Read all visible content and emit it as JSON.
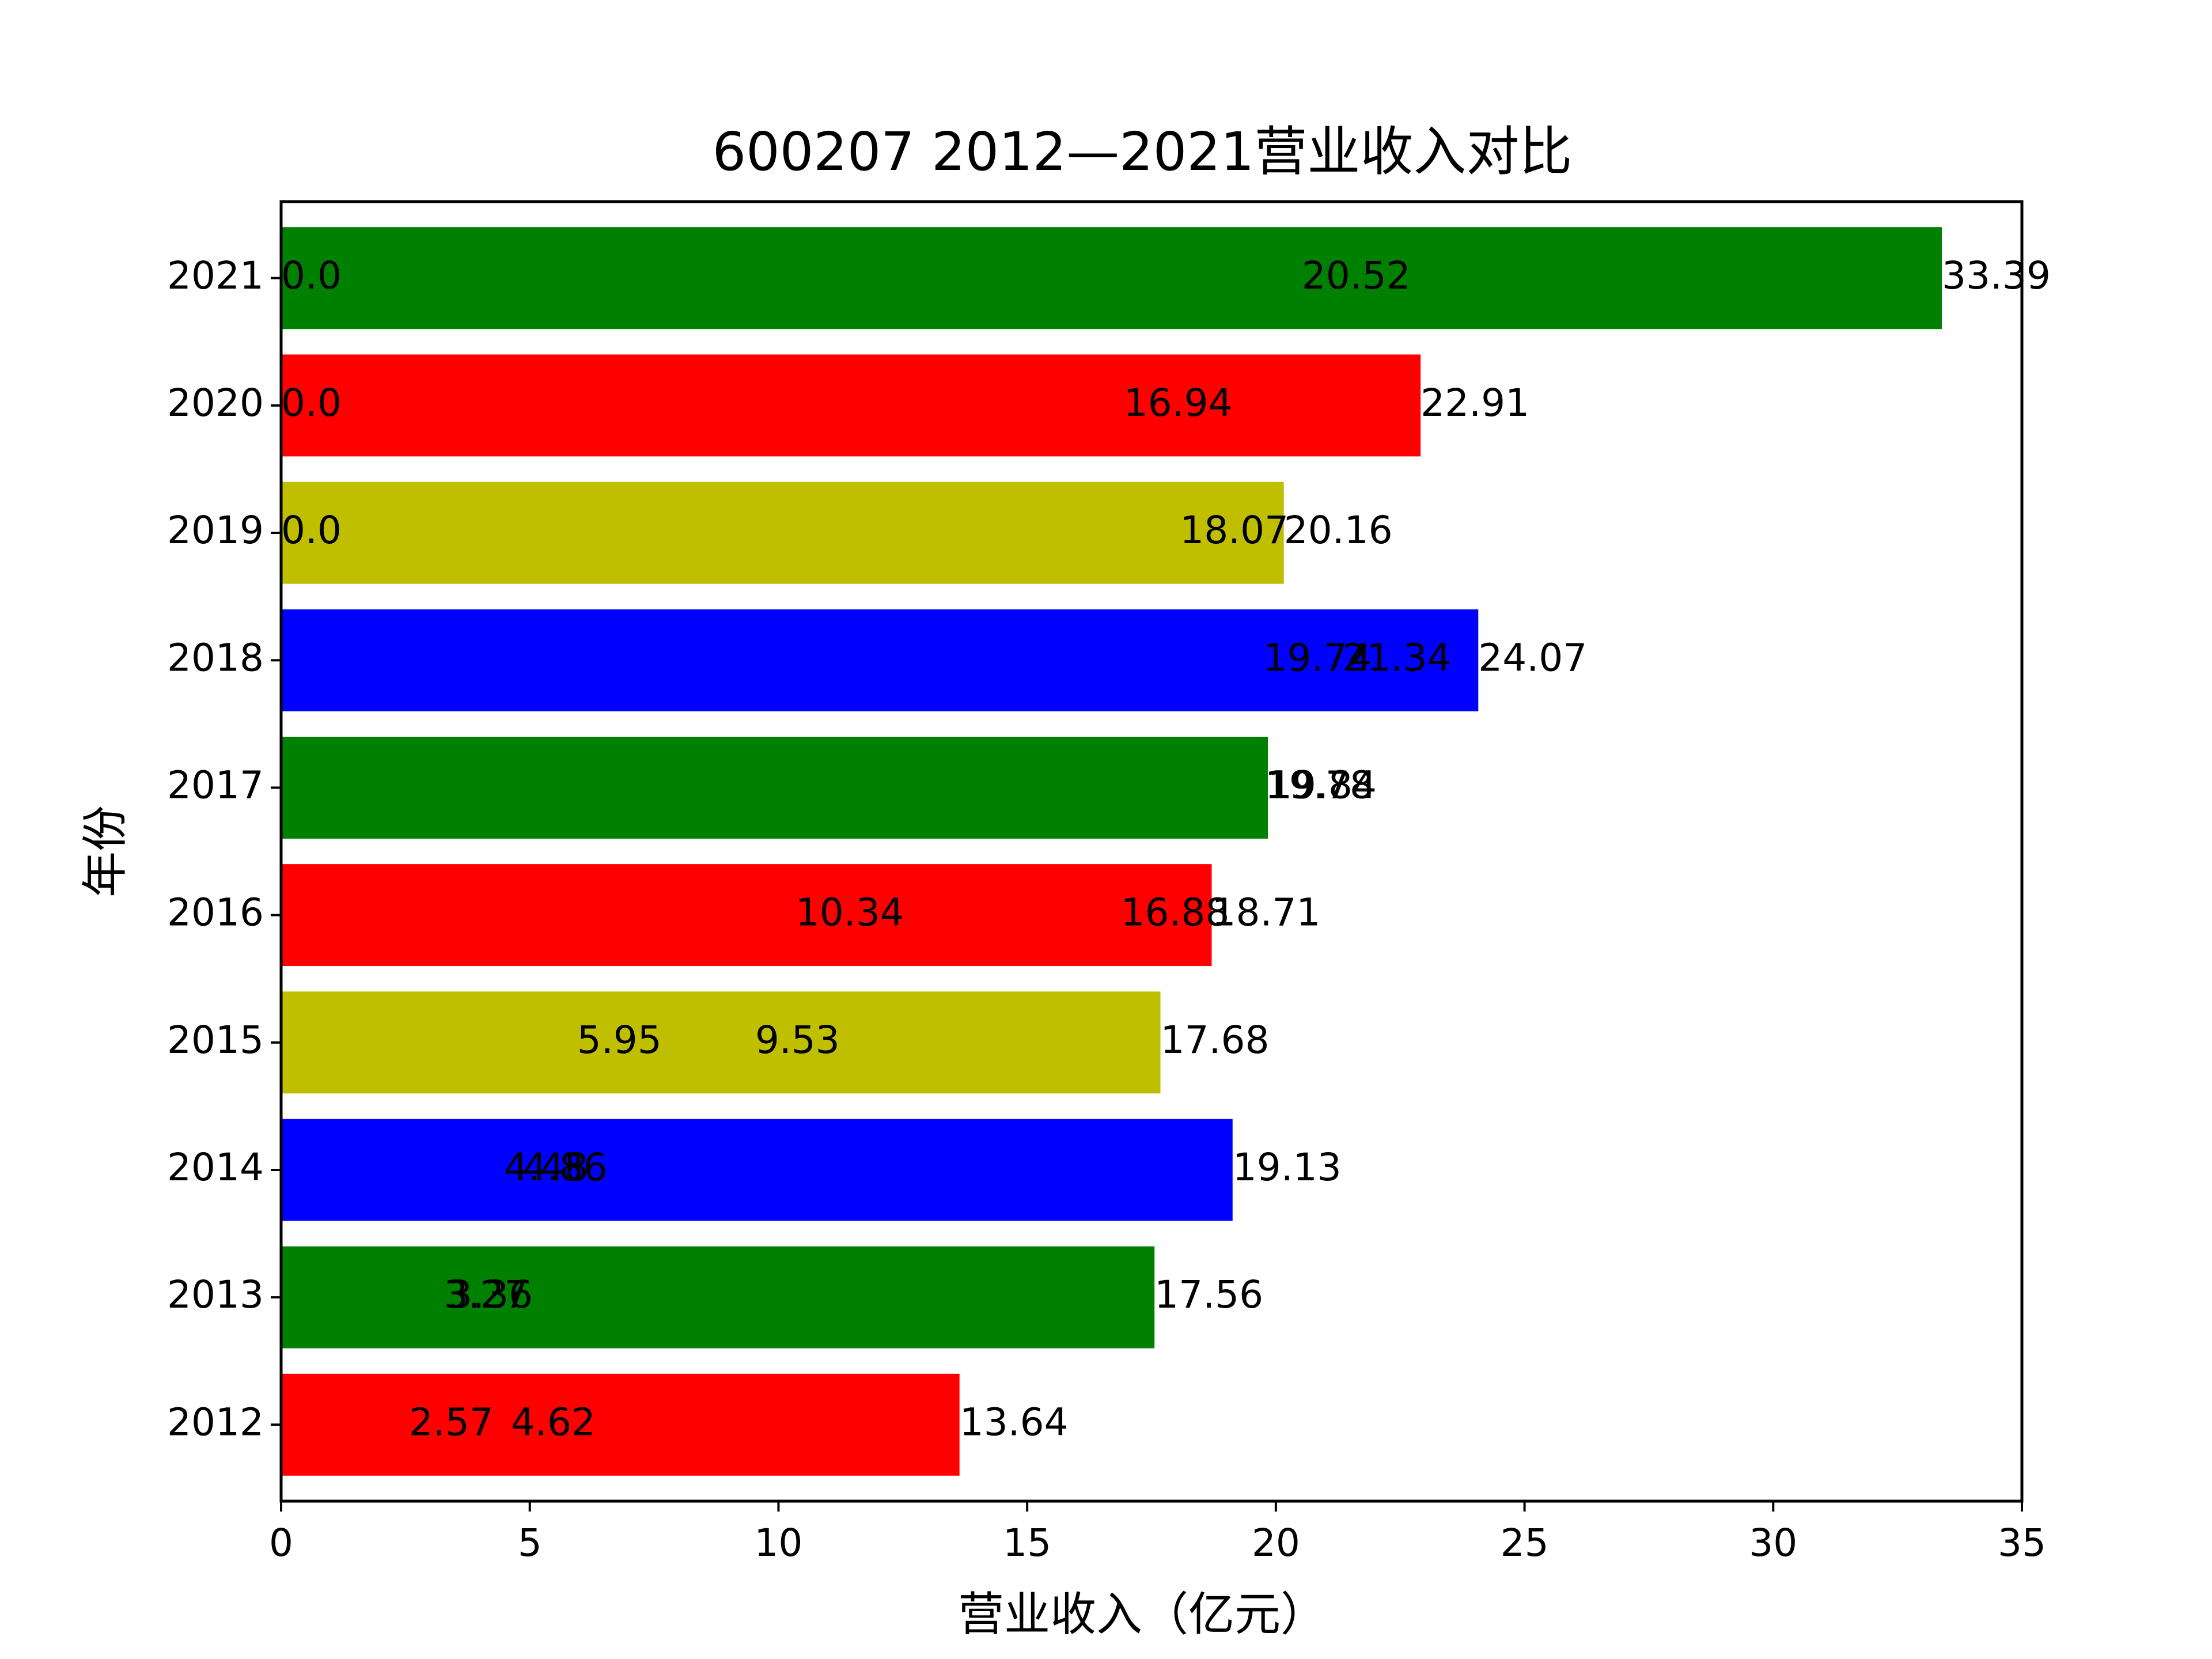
{
  "chart_data": {
    "type": "bar",
    "orientation": "horizontal",
    "title": "600207 2012—2021营业收入对比",
    "xlabel": "营业收入（亿元）",
    "ylabel": "年份",
    "xlim": [
      0,
      35
    ],
    "xticks": [
      "0",
      "5",
      "10",
      "15",
      "20",
      "25",
      "30",
      "35"
    ],
    "grid": false,
    "categories": [
      "2012",
      "2013",
      "2014",
      "2015",
      "2016",
      "2017",
      "2018",
      "2019",
      "2020",
      "2021"
    ],
    "values": [
      13.64,
      17.56,
      19.13,
      17.68,
      18.71,
      19.84,
      24.07,
      20.16,
      22.91,
      33.39
    ],
    "bar_colors": [
      "#ff0000",
      "#008000",
      "#0000ff",
      "#bfbf00",
      "#ff0000",
      "#008000",
      "#0000ff",
      "#bfbf00",
      "#ff0000",
      "#008000"
    ],
    "annotations": [
      {
        "category": "2012",
        "labels": [
          {
            "x": 2.57,
            "text": "2.57"
          },
          {
            "x": 4.62,
            "text": "4.62"
          },
          {
            "x": 13.64,
            "text": "13.64"
          }
        ]
      },
      {
        "category": "2013",
        "labels": [
          {
            "x": 3.27,
            "text": "3.27"
          },
          {
            "x": 3.36,
            "text": "3.36"
          },
          {
            "x": 17.56,
            "text": "17.56"
          }
        ]
      },
      {
        "category": "2014",
        "labels": [
          {
            "x": 4.48,
            "text": "4.48"
          },
          {
            "x": 4.86,
            "text": "4.86"
          },
          {
            "x": 19.13,
            "text": "19.13"
          }
        ]
      },
      {
        "category": "2015",
        "labels": [
          {
            "x": 5.95,
            "text": "5.95"
          },
          {
            "x": 9.53,
            "text": "9.53"
          },
          {
            "x": 17.68,
            "text": "17.68"
          }
        ]
      },
      {
        "category": "2016",
        "labels": [
          {
            "x": 10.34,
            "text": "10.34"
          },
          {
            "x": 16.88,
            "text": "16.88"
          },
          {
            "x": 18.71,
            "text": "18.71"
          }
        ]
      },
      {
        "category": "2017",
        "labels": [
          {
            "x": 19.78,
            "text": "19.78"
          },
          {
            "x": 19.84,
            "text": "19.84"
          }
        ]
      },
      {
        "category": "2018",
        "labels": [
          {
            "x": 19.74,
            "text": "19.74"
          },
          {
            "x": 21.34,
            "text": "21.34"
          },
          {
            "x": 24.07,
            "text": "24.07"
          }
        ]
      },
      {
        "category": "2019",
        "labels": [
          {
            "x": 0.0,
            "text": "0.0"
          },
          {
            "x": 18.07,
            "text": "18.07"
          },
          {
            "x": 20.16,
            "text": "20.16"
          }
        ]
      },
      {
        "category": "2020",
        "labels": [
          {
            "x": 0.0,
            "text": "0.0"
          },
          {
            "x": 16.94,
            "text": "16.94"
          },
          {
            "x": 22.91,
            "text": "22.91"
          }
        ]
      },
      {
        "category": "2021",
        "labels": [
          {
            "x": 0.0,
            "text": "0.0"
          },
          {
            "x": 20.52,
            "text": "20.52"
          },
          {
            "x": 33.39,
            "text": "33.39"
          }
        ]
      }
    ]
  }
}
